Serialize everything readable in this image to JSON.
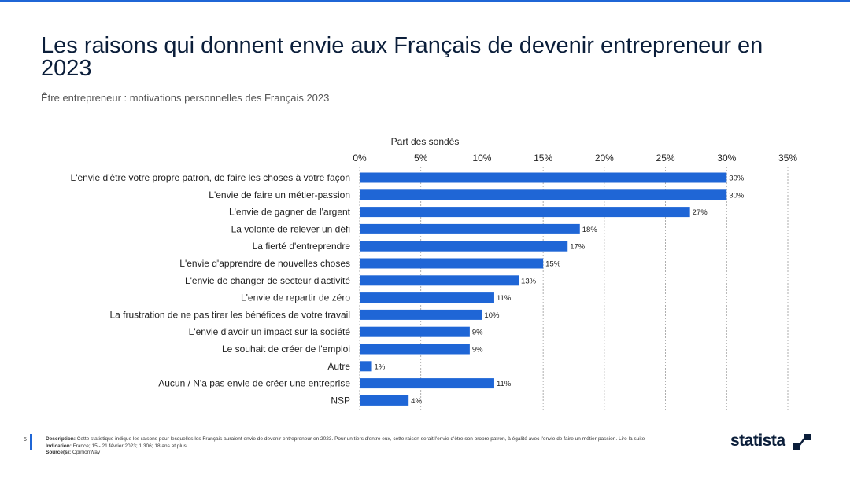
{
  "header": {
    "title": "Les raisons qui donnent envie aux Français de devenir entrepreneur en 2023",
    "subtitle": "Être entrepreneur : motivations personnelles des Français 2023"
  },
  "chart_data": {
    "type": "bar",
    "orientation": "horizontal",
    "xlabel": "Part des sondés",
    "xlim": [
      0,
      35
    ],
    "xticks": [
      "0%",
      "5%",
      "10%",
      "15%",
      "20%",
      "25%",
      "30%",
      "35%"
    ],
    "grid": true,
    "bar_color": "#1f66d6",
    "categories": [
      "L'envie d'être votre propre patron, de faire les choses à votre façon",
      "L'envie de faire un métier-passion",
      "L'envie de gagner de l'argent",
      "La volonté de relever un défi",
      "La fierté d'entreprendre",
      "L'envie d'apprendre de nouvelles choses",
      "L'envie de changer de secteur d'activité",
      "L'envie de repartir de zéro",
      "La frustration de ne pas tirer les bénéfices de votre travail",
      "L'envie d'avoir un impact sur la société",
      "Le souhait de créer de l'emploi",
      "Autre",
      "Aucun / N'a pas envie de créer une entreprise",
      "NSP"
    ],
    "values": [
      30,
      30,
      27,
      18,
      17,
      15,
      13,
      11,
      10,
      9,
      9,
      1,
      11,
      4
    ],
    "value_labels": [
      "30%",
      "30%",
      "27%",
      "18%",
      "17%",
      "15%",
      "13%",
      "11%",
      "10%",
      "9%",
      "9%",
      "1%",
      "11%",
      "4%"
    ]
  },
  "footer": {
    "page": "5",
    "description_label": "Description:",
    "description": "Cette statistique indique les raisons pour lesquelles les Français auraient envie de devenir entrepreneur en 2023. Pour un tiers d'entre eux, cette raison serait l'envie d'être son propre patron, à égalité avec l'envie de faire un métier-passion. Lire la suite",
    "indication_label": "Indication:",
    "indication": "France; 15 - 21 février 2023; 1.306; 18 ans et plus",
    "source_label": "Source(s):",
    "source": "OpinionWay",
    "brand": "statista"
  }
}
